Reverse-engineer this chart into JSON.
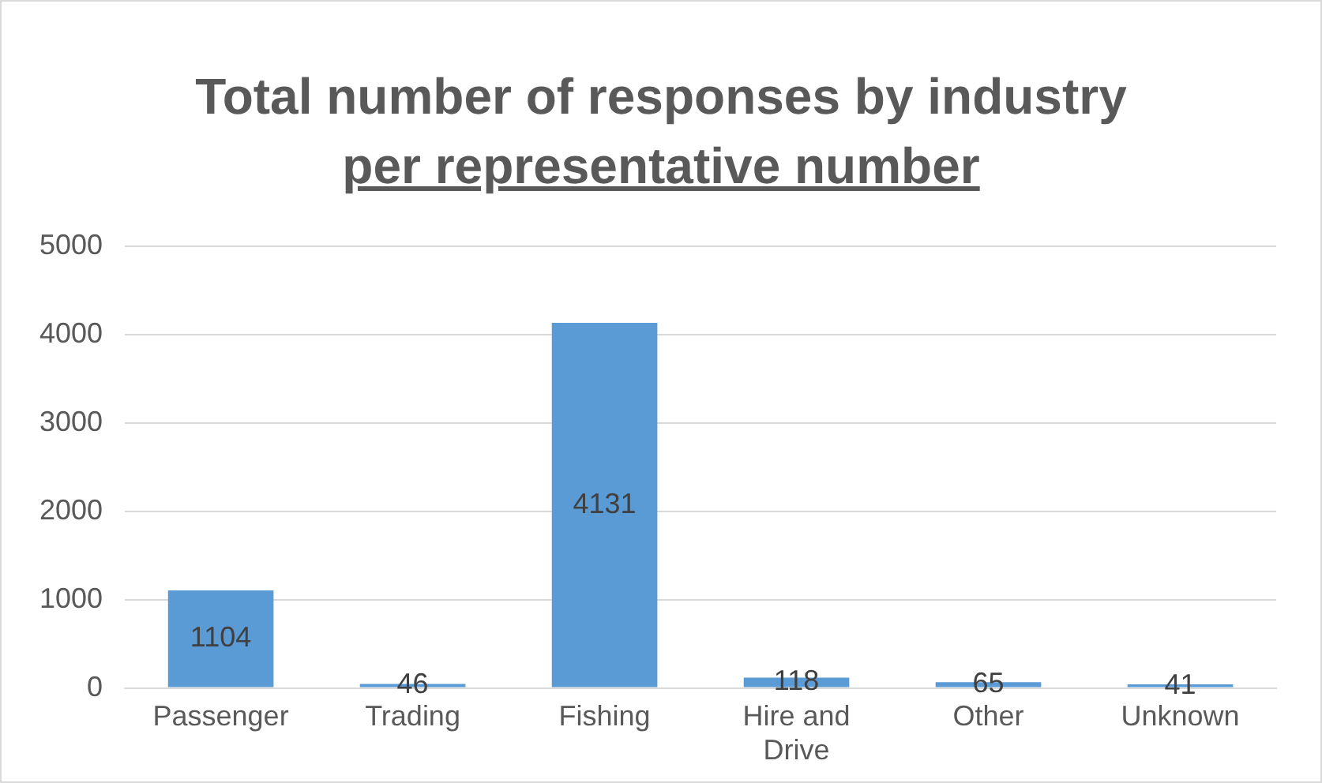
{
  "chart_data": {
    "type": "bar",
    "title": "Total number of responses by industry",
    "subtitle": "per representative number",
    "categories": [
      "Passenger",
      "Trading",
      "Fishing",
      "Hire and Drive",
      "Other",
      "Unknown"
    ],
    "values": [
      1104,
      46,
      4131,
      118,
      65,
      41
    ],
    "color": "#5b9bd5",
    "ylim": [
      0,
      5000
    ],
    "yticks": [
      0,
      1000,
      2000,
      3000,
      4000,
      5000
    ],
    "grid": "y",
    "data_labels": true
  }
}
